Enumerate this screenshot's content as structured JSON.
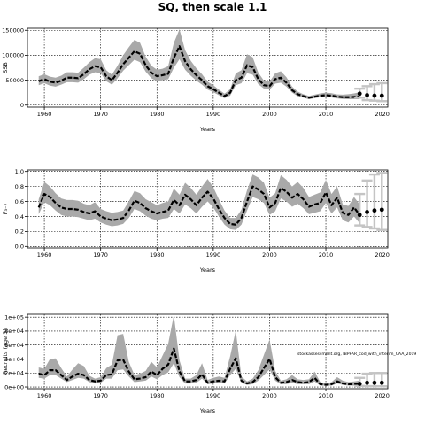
{
  "figure": {
    "title": "SQ, then scale 1.1",
    "annotation": "stockassessment.org, IBPFAR_cod_with_interim_CAA_2019",
    "colors": {
      "band": "#a9a9a9",
      "line": "#000000",
      "grid": "#000000"
    }
  },
  "chart_data": [
    {
      "type": "line",
      "ylabel": "SSB",
      "xlabel": "Years",
      "xlim": [
        1957,
        2021
      ],
      "ylim": [
        -4000,
        154000
      ],
      "xticks": [
        1960,
        1970,
        1980,
        1990,
        2000,
        2010,
        2020
      ],
      "yticks": [
        0,
        50000,
        100000,
        150000
      ],
      "ytick_labels": [
        "0",
        "50000",
        "100000",
        "150000"
      ],
      "grid": true,
      "x": [
        1959,
        1960,
        1961,
        1962,
        1963,
        1964,
        1965,
        1966,
        1967,
        1968,
        1969,
        1970,
        1971,
        1972,
        1973,
        1974,
        1975,
        1976,
        1977,
        1978,
        1979,
        1980,
        1981,
        1982,
        1983,
        1984,
        1985,
        1986,
        1987,
        1988,
        1989,
        1990,
        1991,
        1992,
        1993,
        1994,
        1995,
        1996,
        1997,
        1998,
        1999,
        2000,
        2001,
        2002,
        2003,
        2004,
        2005,
        2006,
        2007,
        2008,
        2009,
        2010,
        2011,
        2012,
        2013,
        2014,
        2015,
        2016
      ],
      "estimate": [
        48000,
        52000,
        47000,
        45000,
        49000,
        55000,
        55000,
        54000,
        62000,
        72000,
        78000,
        76000,
        58000,
        50000,
        65000,
        82000,
        95000,
        108000,
        103000,
        80000,
        65000,
        58000,
        60000,
        63000,
        95000,
        118000,
        88000,
        72000,
        60000,
        50000,
        38000,
        32000,
        25000,
        18000,
        25000,
        50000,
        55000,
        80000,
        76000,
        52000,
        40000,
        38000,
        52000,
        55000,
        45000,
        30000,
        22000,
        18000,
        15000,
        17000,
        19000,
        20000,
        19000,
        17000,
        16000,
        16000,
        16500,
        17000
      ],
      "lower": [
        40000,
        44000,
        39000,
        37000,
        41000,
        46000,
        46000,
        45000,
        52000,
        61000,
        66000,
        64000,
        48000,
        41000,
        54000,
        69000,
        80000,
        91000,
        86000,
        67000,
        54000,
        48000,
        50000,
        52000,
        75000,
        92000,
        71000,
        59000,
        49000,
        41000,
        31000,
        26000,
        20000,
        14000,
        19000,
        40000,
        44000,
        64000,
        61000,
        42000,
        33000,
        31000,
        43000,
        45000,
        37000,
        25000,
        18000,
        15000,
        12000,
        14000,
        16000,
        16500,
        15500,
        13500,
        12500,
        12000,
        12000,
        12000
      ],
      "upper": [
        58000,
        62000,
        57000,
        55000,
        59000,
        66000,
        66000,
        65000,
        75000,
        86000,
        94000,
        92000,
        70000,
        61000,
        79000,
        100000,
        116000,
        131000,
        125000,
        97000,
        79000,
        71000,
        73000,
        78000,
        125000,
        152000,
        110000,
        89000,
        74000,
        62000,
        47000,
        40000,
        31000,
        23000,
        32000,
        64000,
        70000,
        102000,
        96000,
        65000,
        49000,
        47000,
        64000,
        68000,
        56000,
        37000,
        27000,
        22000,
        18500,
        21000,
        23500,
        25000,
        24000,
        21500,
        21000,
        22000,
        23500,
        26000
      ],
      "forecast": {
        "x": [
          2016,
          2017,
          2018,
          2019
        ],
        "median": [
          23000,
          20000,
          19000,
          19000
        ],
        "low": [
          15000,
          10000,
          9000,
          8000
        ],
        "high": [
          33000,
          38000,
          42000,
          44000
        ]
      }
    },
    {
      "type": "line",
      "ylabel": "F₃₋₇",
      "xlabel": "Years",
      "xlim": [
        1957,
        2021
      ],
      "ylim": [
        -0.02,
        1.02
      ],
      "xticks": [
        1960,
        1970,
        1980,
        1990,
        2000,
        2010,
        2020
      ],
      "yticks": [
        0,
        0.2,
        0.4,
        0.6,
        0.8,
        1.0
      ],
      "ytick_labels": [
        "0.0",
        "0.2",
        "0.4",
        "0.6",
        "0.8",
        "1.0"
      ],
      "grid": true,
      "x": [
        1959,
        1960,
        1961,
        1962,
        1963,
        1964,
        1965,
        1966,
        1967,
        1968,
        1969,
        1970,
        1971,
        1972,
        1973,
        1974,
        1975,
        1976,
        1977,
        1978,
        1979,
        1980,
        1981,
        1982,
        1983,
        1984,
        1985,
        1986,
        1987,
        1988,
        1989,
        1990,
        1991,
        1992,
        1993,
        1994,
        1995,
        1996,
        1997,
        1998,
        1999,
        2000,
        2001,
        2002,
        2003,
        2004,
        2005,
        2006,
        2007,
        2008,
        2009,
        2010,
        2011,
        2012,
        2013,
        2014,
        2015,
        2016
      ],
      "estimate": [
        0.52,
        0.7,
        0.66,
        0.58,
        0.52,
        0.5,
        0.5,
        0.49,
        0.46,
        0.44,
        0.47,
        0.4,
        0.37,
        0.35,
        0.36,
        0.38,
        0.48,
        0.61,
        0.58,
        0.51,
        0.47,
        0.44,
        0.46,
        0.48,
        0.62,
        0.55,
        0.69,
        0.63,
        0.55,
        0.65,
        0.73,
        0.64,
        0.5,
        0.38,
        0.3,
        0.29,
        0.38,
        0.6,
        0.8,
        0.76,
        0.7,
        0.52,
        0.58,
        0.78,
        0.73,
        0.65,
        0.7,
        0.63,
        0.53,
        0.56,
        0.58,
        0.72,
        0.55,
        0.65,
        0.45,
        0.42,
        0.52,
        0.42
      ],
      "lower": [
        0.43,
        0.59,
        0.55,
        0.48,
        0.42,
        0.4,
        0.4,
        0.39,
        0.37,
        0.35,
        0.37,
        0.32,
        0.29,
        0.27,
        0.28,
        0.3,
        0.38,
        0.5,
        0.47,
        0.41,
        0.37,
        0.35,
        0.37,
        0.38,
        0.5,
        0.44,
        0.56,
        0.51,
        0.44,
        0.53,
        0.6,
        0.52,
        0.4,
        0.29,
        0.23,
        0.22,
        0.29,
        0.48,
        0.66,
        0.63,
        0.58,
        0.42,
        0.47,
        0.64,
        0.6,
        0.53,
        0.57,
        0.51,
        0.43,
        0.45,
        0.47,
        0.58,
        0.44,
        0.52,
        0.35,
        0.32,
        0.4,
        0.31
      ],
      "upper": [
        0.63,
        0.86,
        0.8,
        0.71,
        0.64,
        0.62,
        0.62,
        0.61,
        0.57,
        0.55,
        0.59,
        0.5,
        0.47,
        0.45,
        0.46,
        0.48,
        0.6,
        0.74,
        0.71,
        0.63,
        0.59,
        0.55,
        0.58,
        0.6,
        0.77,
        0.69,
        0.85,
        0.78,
        0.69,
        0.8,
        0.9,
        0.79,
        0.63,
        0.48,
        0.38,
        0.38,
        0.49,
        0.75,
        0.96,
        0.92,
        0.85,
        0.65,
        0.71,
        0.95,
        0.89,
        0.8,
        0.86,
        0.78,
        0.66,
        0.69,
        0.72,
        0.89,
        0.7,
        0.8,
        0.56,
        0.54,
        0.66,
        0.56
      ],
      "forecast": {
        "x": [
          2016,
          2017,
          2018,
          2019
        ],
        "median": [
          0.42,
          0.46,
          0.48,
          0.49
        ],
        "low": [
          0.28,
          0.26,
          0.24,
          0.22
        ],
        "high": [
          0.7,
          0.88,
          0.96,
          0.98
        ]
      }
    },
    {
      "type": "line",
      "ylabel": "Recruits (age 3)",
      "xlabel": "Years",
      "xlim": [
        1957,
        2021
      ],
      "ylim": [
        -2500,
        104000
      ],
      "xticks": [
        1960,
        1970,
        1980,
        1990,
        2000,
        2010,
        2020
      ],
      "yticks": [
        0,
        20000,
        40000,
        60000,
        80000,
        100000
      ],
      "ytick_labels": [
        "0e+00",
        "2e+04",
        "4e+04",
        "6e+04",
        "8e+04",
        "1e+05"
      ],
      "grid": true,
      "x": [
        1959,
        1960,
        1961,
        1962,
        1963,
        1964,
        1965,
        1966,
        1967,
        1968,
        1969,
        1970,
        1971,
        1972,
        1973,
        1974,
        1975,
        1976,
        1977,
        1978,
        1979,
        1980,
        1981,
        1982,
        1983,
        1984,
        1985,
        1986,
        1987,
        1988,
        1989,
        1990,
        1991,
        1992,
        1993,
        1994,
        1995,
        1996,
        1997,
        1998,
        1999,
        2000,
        2001,
        2002,
        2003,
        2004,
        2005,
        2006,
        2007,
        2008,
        2009,
        2010,
        2011,
        2012,
        2013,
        2014,
        2015,
        2016
      ],
      "estimate": [
        19000,
        17000,
        24000,
        24000,
        17000,
        10000,
        15000,
        19000,
        17000,
        10000,
        8000,
        9000,
        17000,
        18000,
        38000,
        39000,
        22000,
        11000,
        12000,
        14000,
        22000,
        17000,
        26000,
        32000,
        55000,
        22000,
        8000,
        8000,
        10000,
        18000,
        6000,
        8000,
        9000,
        8000,
        26000,
        41000,
        9000,
        5000,
        7000,
        14000,
        27000,
        40000,
        14000,
        6000,
        7000,
        10000,
        7000,
        6000,
        7000,
        13000,
        4000,
        3000,
        4000,
        8000,
        5000,
        4000,
        4000,
        5000
      ],
      "lower": [
        13000,
        12000,
        17000,
        17000,
        12000,
        7000,
        10000,
        13000,
        12000,
        7000,
        5000,
        6000,
        12000,
        12000,
        24000,
        25000,
        15000,
        7000,
        8000,
        9000,
        15000,
        11000,
        17000,
        21000,
        34000,
        14000,
        5000,
        5000,
        6000,
        12000,
        4000,
        5000,
        6000,
        5000,
        17000,
        26000,
        6000,
        3000,
        4000,
        9000,
        17000,
        25000,
        9000,
        4000,
        4000,
        6000,
        4000,
        4000,
        4000,
        8000,
        2000,
        2000,
        2000,
        5000,
        3000,
        2000,
        2000,
        2000
      ],
      "upper": [
        28000,
        26000,
        40000,
        41000,
        27000,
        15000,
        25000,
        34000,
        30000,
        16000,
        12000,
        14000,
        27000,
        32000,
        74000,
        76000,
        36000,
        17000,
        19000,
        23000,
        36000,
        28000,
        45000,
        62000,
        103000,
        38000,
        12000,
        12000,
        17000,
        34000,
        10000,
        13000,
        15000,
        13000,
        44000,
        81000,
        15000,
        8000,
        12000,
        24000,
        46000,
        68000,
        23000,
        9000,
        11000,
        17000,
        11000,
        10000,
        11000,
        22000,
        7000,
        5000,
        7000,
        14000,
        9000,
        7000,
        8000,
        9000
      ],
      "forecast": {
        "x": [
          2016,
          2017,
          2018,
          2019
        ],
        "median": [
          4500,
          6000,
          6000,
          6000
        ],
        "low": [
          1500,
          1200,
          1100,
          1000
        ],
        "high": [
          13000,
          19000,
          20000,
          20000
        ]
      }
    }
  ]
}
